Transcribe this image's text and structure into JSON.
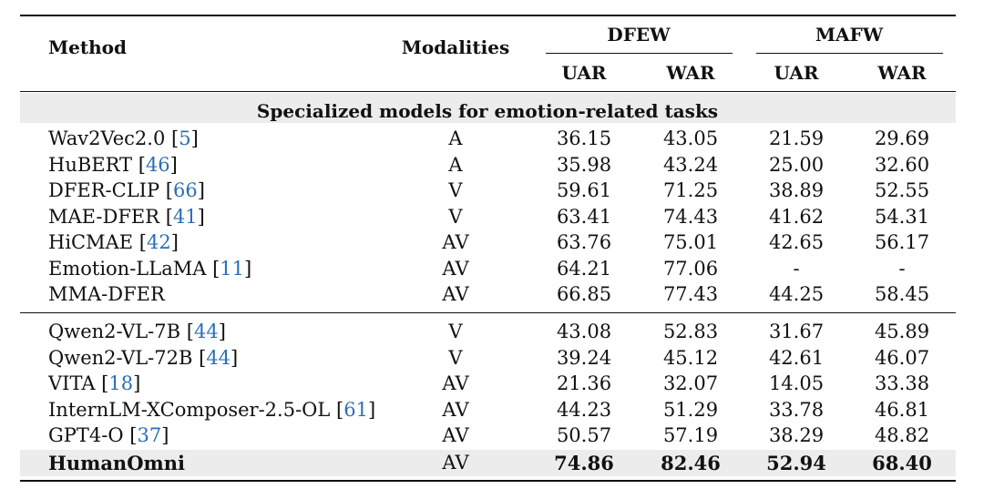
{
  "header": {
    "method": "Method",
    "modalities": "Modalities",
    "dfew": "DFEW",
    "mafw": "MAFW",
    "uar": "UAR",
    "war": "WAR"
  },
  "section_title": "Specialized models for emotion-related tasks",
  "group1": [
    {
      "name": "Wav2Vec2.0",
      "ref": "5",
      "mod": "A",
      "dfew_uar": "36.15",
      "dfew_war": "43.05",
      "mafw_uar": "21.59",
      "mafw_war": "29.69"
    },
    {
      "name": "HuBERT",
      "ref": "46",
      "mod": "A",
      "dfew_uar": "35.98",
      "dfew_war": "43.24",
      "mafw_uar": "25.00",
      "mafw_war": "32.60"
    },
    {
      "name": "DFER-CLIP",
      "ref": "66",
      "mod": "V",
      "dfew_uar": "59.61",
      "dfew_war": "71.25",
      "mafw_uar": "38.89",
      "mafw_war": "52.55"
    },
    {
      "name": "MAE-DFER",
      "ref": "41",
      "mod": "V",
      "dfew_uar": "63.41",
      "dfew_war": "74.43",
      "mafw_uar": "41.62",
      "mafw_war": "54.31"
    },
    {
      "name": "HiCMAE",
      "ref": "42",
      "mod": "AV",
      "dfew_uar": "63.76",
      "dfew_war": "75.01",
      "mafw_uar": "42.65",
      "mafw_war": "56.17"
    },
    {
      "name": "Emotion-LLaMA",
      "ref": "11",
      "mod": "AV",
      "dfew_uar": "64.21",
      "dfew_war": "77.06",
      "mafw_uar": "-",
      "mafw_war": "-"
    },
    {
      "name": "MMA-DFER",
      "ref": "",
      "mod": "AV",
      "dfew_uar": "66.85",
      "dfew_war": "77.43",
      "mafw_uar": "44.25",
      "mafw_war": "58.45"
    }
  ],
  "group2": [
    {
      "name": "Qwen2-VL-7B",
      "ref": "44",
      "mod": "V",
      "dfew_uar": "43.08",
      "dfew_war": "52.83",
      "mafw_uar": "31.67",
      "mafw_war": "45.89"
    },
    {
      "name": "Qwen2-VL-72B",
      "ref": "44",
      "mod": "V",
      "dfew_uar": "39.24",
      "dfew_war": "45.12",
      "mafw_uar": "42.61",
      "mafw_war": "46.07"
    },
    {
      "name": "VITA",
      "ref": "18",
      "mod": "AV",
      "dfew_uar": "21.36",
      "dfew_war": "32.07",
      "mafw_uar": "14.05",
      "mafw_war": "33.38"
    },
    {
      "name": "InternLM-XComposer-2.5-OL",
      "ref": "61",
      "mod": "AV",
      "dfew_uar": "44.23",
      "dfew_war": "51.29",
      "mafw_uar": "33.78",
      "mafw_war": "46.81"
    },
    {
      "name": "GPT4-O",
      "ref": "37",
      "mod": "AV",
      "dfew_uar": "50.57",
      "dfew_war": "57.19",
      "mafw_uar": "38.29",
      "mafw_war": "48.82"
    }
  ],
  "highlight_row": {
    "name": "HumanOmni",
    "mod": "AV",
    "dfew_uar": "74.86",
    "dfew_war": "82.46",
    "mafw_uar": "52.94",
    "mafw_war": "68.40"
  }
}
